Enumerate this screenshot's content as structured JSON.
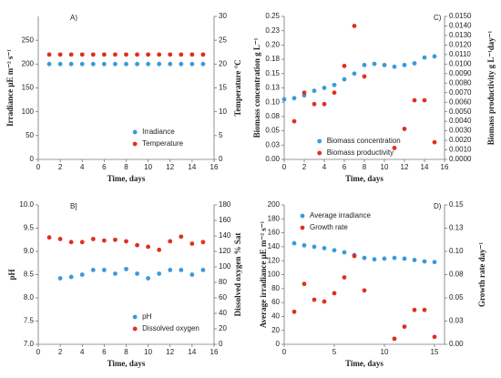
{
  "chart_data": [
    {
      "type": "scatter",
      "panel_label": "A)",
      "xlabel": "Time, days",
      "ylabel": "Irradiance μE m⁻² s⁻¹",
      "y2label": "Temperature °C",
      "xlim": [
        0,
        16
      ],
      "xticks": [
        0,
        2,
        4,
        6,
        8,
        10,
        12,
        14,
        16
      ],
      "ylim": [
        0,
        300
      ],
      "yticks": [
        0,
        50,
        100,
        150,
        200,
        250
      ],
      "y2lim": [
        0,
        30
      ],
      "y2ticks": [
        0,
        5,
        10,
        15,
        20,
        25,
        30
      ],
      "legend": "lower right",
      "series": [
        {
          "name": "Irradiance",
          "color": "#3a9ad9",
          "x": [
            1,
            2,
            3,
            4,
            5,
            6,
            7,
            8,
            9,
            10,
            11,
            12,
            13,
            14,
            15
          ],
          "values": [
            200,
            200,
            200,
            200,
            200,
            200,
            200,
            200,
            200,
            200,
            200,
            200,
            200,
            200,
            200
          ]
        },
        {
          "name": "Temperature",
          "color": "#e0301e",
          "axis": "y2",
          "x": [
            1,
            2,
            3,
            4,
            5,
            6,
            7,
            8,
            9,
            10,
            11,
            12,
            13,
            14,
            15
          ],
          "values": [
            22,
            22,
            22,
            22,
            22,
            22,
            22,
            22,
            22,
            22,
            22,
            22,
            22,
            22,
            22
          ]
        }
      ]
    },
    {
      "type": "scatter",
      "panel_label": "C)",
      "xlabel": "Time, days",
      "ylabel": "Biomass concentration  g L⁻¹",
      "y2label": "Biomass productivity  g L⁻¹day⁻¹",
      "xlim": [
        0,
        16
      ],
      "xticks": [
        0,
        2,
        4,
        6,
        8,
        10,
        12,
        14,
        16
      ],
      "ylim": [
        0,
        0.25
      ],
      "yticks": [
        {
          "value": 0,
          "label": "0.00"
        },
        {
          "value": 0.025,
          "label": "0.03"
        },
        {
          "value": 0.05,
          "label": "0.05"
        },
        {
          "value": 0.075,
          "label": "0.08"
        },
        {
          "value": 0.1,
          "label": "0.10"
        },
        {
          "value": 0.125,
          "label": "0.13"
        },
        {
          "value": 0.15,
          "label": "0.15"
        },
        {
          "value": 0.175,
          "label": "0.18"
        },
        {
          "value": 0.2,
          "label": "0.20"
        },
        {
          "value": 0.225,
          "label": "0.23"
        },
        {
          "value": 0.25,
          "label": "0.25"
        }
      ],
      "y2lim": [
        0,
        0.015
      ],
      "y2ticks": [
        {
          "value": 0,
          "label": "0.0000"
        },
        {
          "value": 0.001,
          "label": "0.0010"
        },
        {
          "value": 0.002,
          "label": "0.0020"
        },
        {
          "value": 0.003,
          "label": "0.0030"
        },
        {
          "value": 0.004,
          "label": "0.0040"
        },
        {
          "value": 0.005,
          "label": "0.0050"
        },
        {
          "value": 0.006,
          "label": "0.0060"
        },
        {
          "value": 0.007,
          "label": "0.0070"
        },
        {
          "value": 0.008,
          "label": "0.0080"
        },
        {
          "value": 0.009,
          "label": "0.0090"
        },
        {
          "value": 0.01,
          "label": "0.0100"
        },
        {
          "value": 0.011,
          "label": "0.0110"
        },
        {
          "value": 0.012,
          "label": "0.0120"
        },
        {
          "value": 0.013,
          "label": "0.0130"
        },
        {
          "value": 0.014,
          "label": "0.0140"
        },
        {
          "value": 0.015,
          "label": "0.0150"
        }
      ],
      "legend": "center",
      "series": [
        {
          "name": "Biomass concentration",
          "color": "#3a9ad9",
          "x": [
            0,
            1,
            2,
            3,
            4,
            5,
            6,
            7,
            8,
            9,
            10,
            11,
            12,
            13,
            14,
            15
          ],
          "values": [
            0.105,
            0.107,
            0.112,
            0.12,
            0.125,
            0.13,
            0.14,
            0.15,
            0.165,
            0.167,
            0.165,
            0.162,
            0.165,
            0.168,
            0.178,
            0.18
          ]
        },
        {
          "name": "Biomass productivity",
          "color": "#e0301e",
          "axis": "y2",
          "x": [
            1,
            2,
            3,
            4,
            5,
            6,
            7,
            8,
            11,
            12,
            13,
            14,
            15
          ],
          "values": [
            0.004,
            0.007,
            0.0058,
            0.0058,
            0.007,
            0.0098,
            0.014,
            0.0087,
            0.0012,
            0.0032,
            0.0062,
            0.0062,
            0.0018
          ]
        }
      ]
    },
    {
      "type": "scatter",
      "panel_label": "B]",
      "xlabel": "Time, days",
      "ylabel": "pH",
      "y2label": "Dissolved oxygen  % Sat",
      "xlim": [
        0,
        16
      ],
      "xticks": [
        0,
        2,
        4,
        6,
        8,
        10,
        12,
        14,
        16
      ],
      "ylim": [
        7,
        10
      ],
      "yticks": [
        {
          "value": 7,
          "label": "7.0"
        },
        7.5,
        {
          "value": 8,
          "label": "8.0"
        },
        8.5,
        {
          "value": 9,
          "label": "9.0"
        },
        9.5,
        {
          "value": 10,
          "label": "10.0"
        }
      ],
      "y2lim": [
        0,
        180
      ],
      "y2ticks": [
        0,
        20,
        40,
        60,
        80,
        100,
        120,
        140,
        160,
        180
      ],
      "legend": "lower right",
      "series": [
        {
          "name": "pH",
          "color": "#3a9ad9",
          "x": [
            2,
            3,
            4,
            5,
            6,
            7,
            8,
            9,
            10,
            11,
            12,
            13,
            14,
            15
          ],
          "values": [
            8.42,
            8.45,
            8.5,
            8.6,
            8.6,
            8.52,
            8.62,
            8.52,
            8.42,
            8.52,
            8.6,
            8.6,
            8.5,
            8.6
          ]
        },
        {
          "name": "Dissolved oxygen",
          "color": "#e0301e",
          "axis": "y2",
          "x": [
            1,
            2,
            3,
            4,
            5,
            6,
            7,
            8,
            9,
            10,
            11,
            12,
            13,
            14,
            15
          ],
          "values": [
            138,
            136,
            132,
            132,
            136,
            134,
            135,
            133,
            128,
            126,
            122,
            133,
            139,
            130,
            132
          ]
        }
      ]
    },
    {
      "type": "scatter",
      "panel_label": "D)",
      "xlabel": "Time, days",
      "ylabel": "Average irradiance μE m⁻² s⁻¹",
      "y2label": "Growth rate  day⁻¹",
      "xlim": [
        0,
        16
      ],
      "xticks": [
        0,
        5,
        10,
        15
      ],
      "ylim": [
        0,
        200
      ],
      "yticks": [
        0,
        20,
        40,
        60,
        80,
        100,
        120,
        140,
        160,
        180,
        200
      ],
      "y2lim": [
        0,
        0.15
      ],
      "y2ticks": [
        {
          "value": 0,
          "label": "0.00"
        },
        {
          "value": 0.025,
          "label": "0.03"
        },
        {
          "value": 0.05,
          "label": "0.05"
        },
        {
          "value": 0.075,
          "label": "0.08"
        },
        {
          "value": 0.1,
          "label": "0.10"
        },
        {
          "value": 0.125,
          "label": "0.13"
        },
        {
          "value": 0.15,
          "label": "0.15"
        }
      ],
      "legend": "upper left",
      "series": [
        {
          "name": "Average irradiance",
          "color": "#3a9ad9",
          "x": [
            1,
            2,
            3,
            4,
            5,
            6,
            7,
            8,
            9,
            10,
            11,
            12,
            13,
            14,
            15
          ],
          "values": [
            145,
            142,
            140,
            138,
            135,
            132,
            128,
            124,
            122,
            123,
            124,
            123,
            121,
            119,
            118
          ]
        },
        {
          "name": "Growth rate",
          "color": "#e0301e",
          "axis": "y2",
          "x": [
            1,
            2,
            3,
            4,
            5,
            6,
            7,
            8,
            11,
            12,
            13,
            14,
            15
          ],
          "values": [
            0.035,
            0.065,
            0.048,
            0.046,
            0.055,
            0.072,
            0.095,
            0.058,
            0.006,
            0.019,
            0.037,
            0.037,
            0.008
          ]
        }
      ]
    }
  ]
}
